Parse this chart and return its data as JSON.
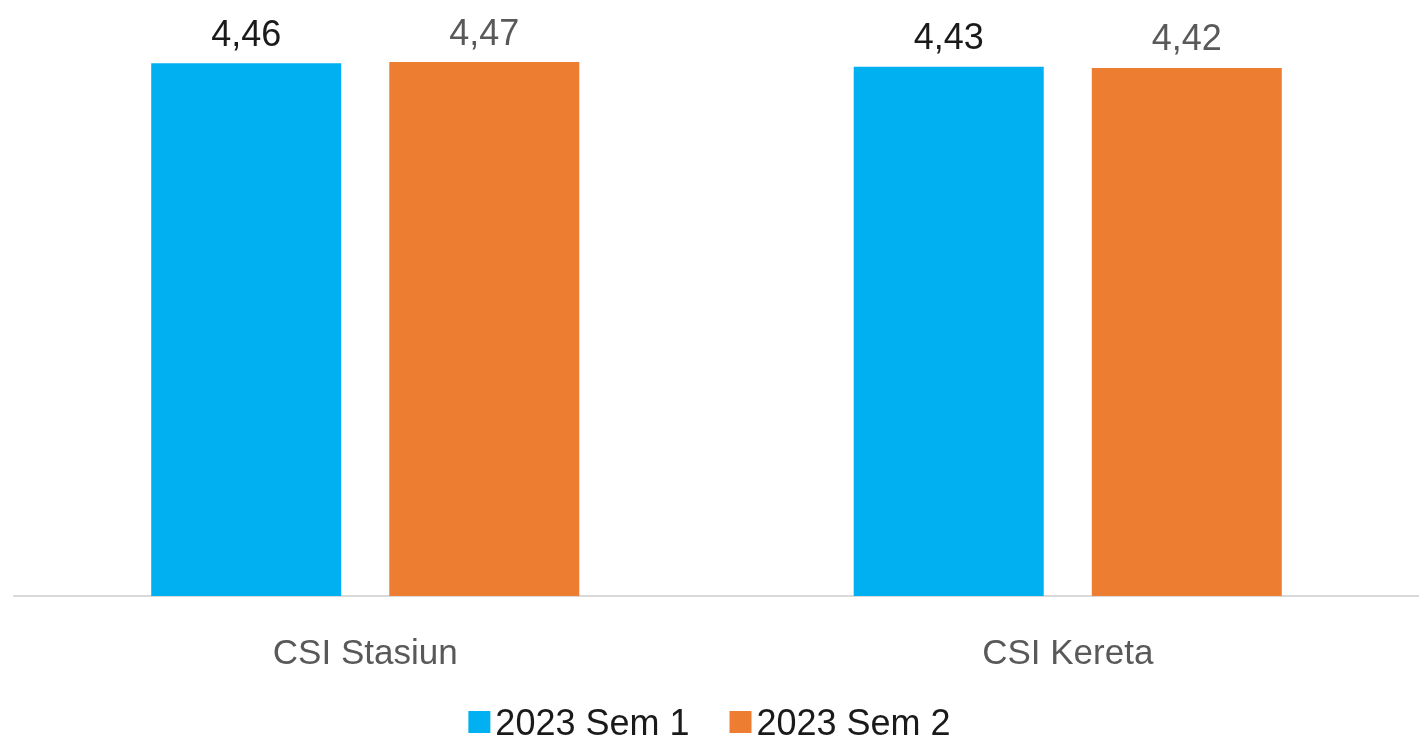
{
  "chart_data": {
    "type": "bar",
    "categories": [
      "CSI Stasiun",
      "CSI Kereta"
    ],
    "series": [
      {
        "name": "2023 Sem 1",
        "color": "#00b0f0",
        "values": [
          4.46,
          4.43
        ],
        "value_labels": [
          "4,46",
          "4,43"
        ]
      },
      {
        "name": "2023 Sem 2",
        "color": "#ed7d31",
        "values": [
          4.47,
          4.42
        ],
        "value_labels": [
          "4,47",
          "4,42"
        ]
      }
    ],
    "legend": "bottom"
  }
}
